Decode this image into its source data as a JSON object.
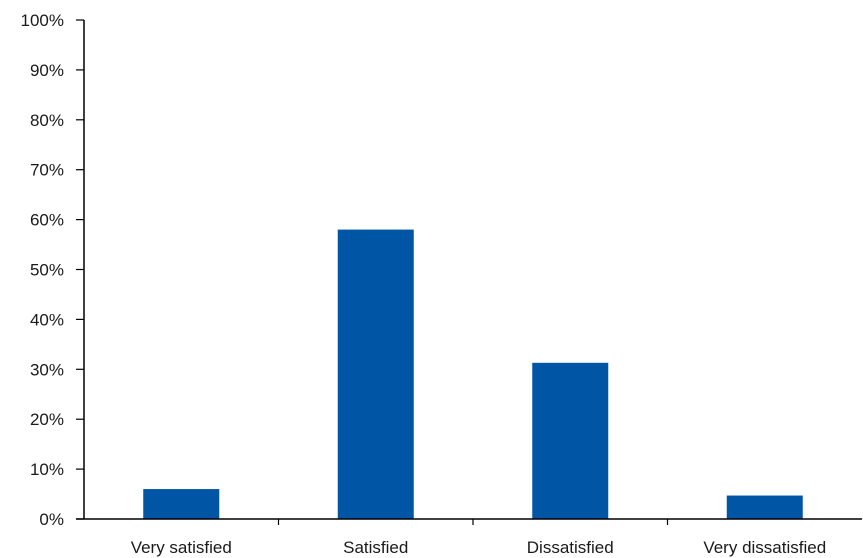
{
  "chart_data": {
    "type": "bar",
    "categories": [
      "Very satisfied",
      "Satisfied",
      "Dissatisfied",
      "Very dissatisfied"
    ],
    "values": [
      6,
      58,
      31.3,
      4.7
    ],
    "ylim": [
      0,
      100
    ],
    "yticks": [
      "0%",
      "10%",
      "20%",
      "30%",
      "40%",
      "50%",
      "60%",
      "70%",
      "80%",
      "90%",
      "100%"
    ],
    "bar_color": "#0055a5",
    "axis_color": "#000000",
    "grid": false,
    "legend": "none"
  }
}
